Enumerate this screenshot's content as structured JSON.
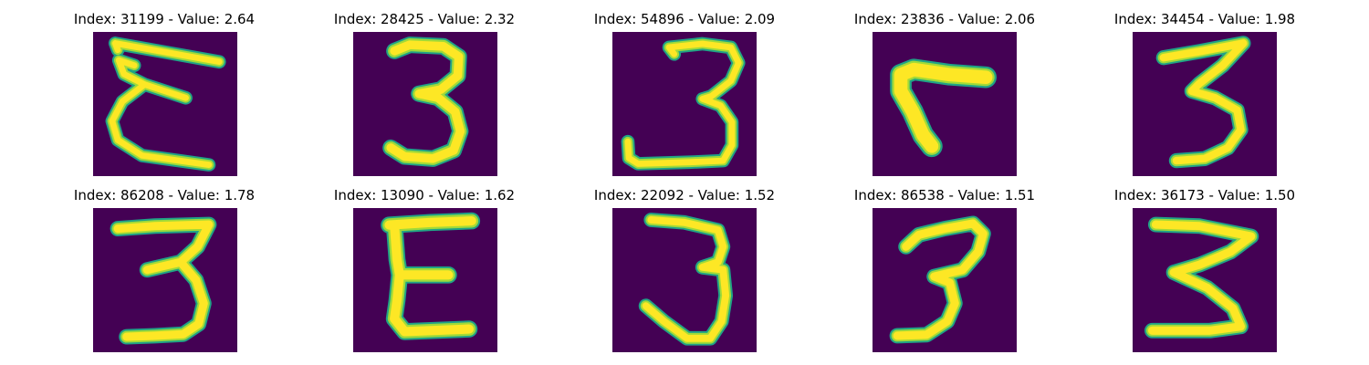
{
  "colors": {
    "background": "#440154",
    "stroke_core": "#fde725",
    "stroke_mid": "#a0da39",
    "stroke_edge": "#20a386"
  },
  "tiles": [
    {
      "index": "31199",
      "value": "2.64",
      "title": "Index: 31199 - Value: 2.64",
      "digit": "3-variant-rotated"
    },
    {
      "index": "28425",
      "value": "2.32",
      "title": "Index: 28425 - Value: 2.32",
      "digit": "3"
    },
    {
      "index": "54896",
      "value": "2.09",
      "title": "Index: 54896 - Value: 2.09",
      "digit": "3"
    },
    {
      "index": "23836",
      "value": "2.06",
      "title": "Index: 23836 - Value: 2.06",
      "digit": "7-like"
    },
    {
      "index": "34454",
      "value": "1.98",
      "title": "Index: 34454 - Value: 1.98",
      "digit": "3"
    },
    {
      "index": "86208",
      "value": "1.78",
      "title": "Index: 86208 - Value: 1.78",
      "digit": "3"
    },
    {
      "index": "13090",
      "value": "1.62",
      "title": "Index: 13090 - Value: 1.62",
      "digit": "3-variant-rotated"
    },
    {
      "index": "22092",
      "value": "1.52",
      "title": "Index: 22092 - Value: 1.52",
      "digit": "3"
    },
    {
      "index": "86538",
      "value": "1.51",
      "title": "Index: 86538 - Value: 1.51",
      "digit": "3"
    },
    {
      "index": "36173",
      "value": "1.50",
      "title": "Index: 36173 - Value: 1.50",
      "digit": "3"
    }
  ]
}
